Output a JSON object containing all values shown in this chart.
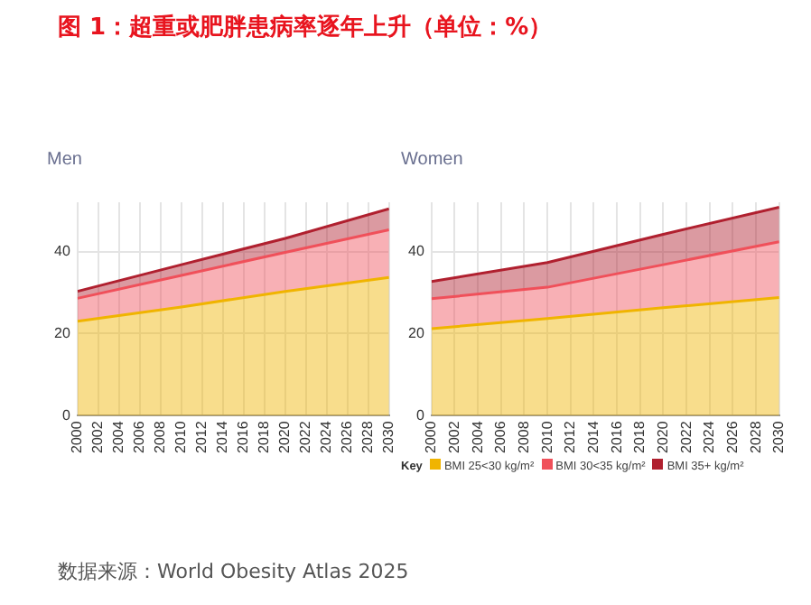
{
  "chart_data": [
    {
      "type": "area",
      "title": "Men",
      "stacked": true,
      "x": [
        2000,
        2010,
        2020,
        2030
      ],
      "xlim": [
        2000,
        2030
      ],
      "xticks": [
        2000,
        2002,
        2004,
        2006,
        2008,
        2010,
        2012,
        2014,
        2016,
        2018,
        2020,
        2022,
        2024,
        2026,
        2028,
        2030
      ],
      "ylim": [
        0,
        52
      ],
      "yticks": [
        0,
        20,
        40
      ],
      "grid": true,
      "marker": "none",
      "annotations": [
        "图 1：超重或肥胖患病率逐年上升（单位：%）"
      ],
      "series": [
        {
          "color": "#f0b400",
          "values": [
            23,
            26.5,
            30.3,
            33.7
          ]
        },
        {
          "color": "#f0505a",
          "values": [
            5.6,
            7.7,
            9.5,
            11.6
          ]
        },
        {
          "color": "#b0202f",
          "values": [
            1.7,
            2.6,
            3.4,
            5.1
          ]
        }
      ]
    },
    {
      "type": "area",
      "title": "Women",
      "stacked": true,
      "x": [
        2000,
        2010,
        2020,
        2030
      ],
      "xlim": [
        2000,
        2030
      ],
      "xticks": [
        2000,
        2002,
        2004,
        2006,
        2008,
        2010,
        2012,
        2014,
        2016,
        2018,
        2020,
        2022,
        2024,
        2026,
        2028,
        2030
      ],
      "ylim": [
        0,
        52
      ],
      "yticks": [
        0,
        20,
        40
      ],
      "grid": true,
      "legend": "bottom",
      "legend_title": "Key",
      "marker": "none",
      "annotations": [
        "数据来源：World Obesity Atlas 2025"
      ],
      "series": [
        {
          "name": "BMI 25<30 kg/m²",
          "color": "#f0b400",
          "values": [
            21.2,
            23.7,
            26.3,
            28.8
          ]
        },
        {
          "name": "BMI 30<35 kg/m²",
          "color": "#f0505a",
          "values": [
            7.3,
            7.6,
            10.5,
            13.6
          ]
        },
        {
          "name": "BMI 35+ kg/m²",
          "color": "#b0202f",
          "values": [
            4.2,
            6.0,
            7.4,
            8.4
          ]
        }
      ]
    }
  ]
}
